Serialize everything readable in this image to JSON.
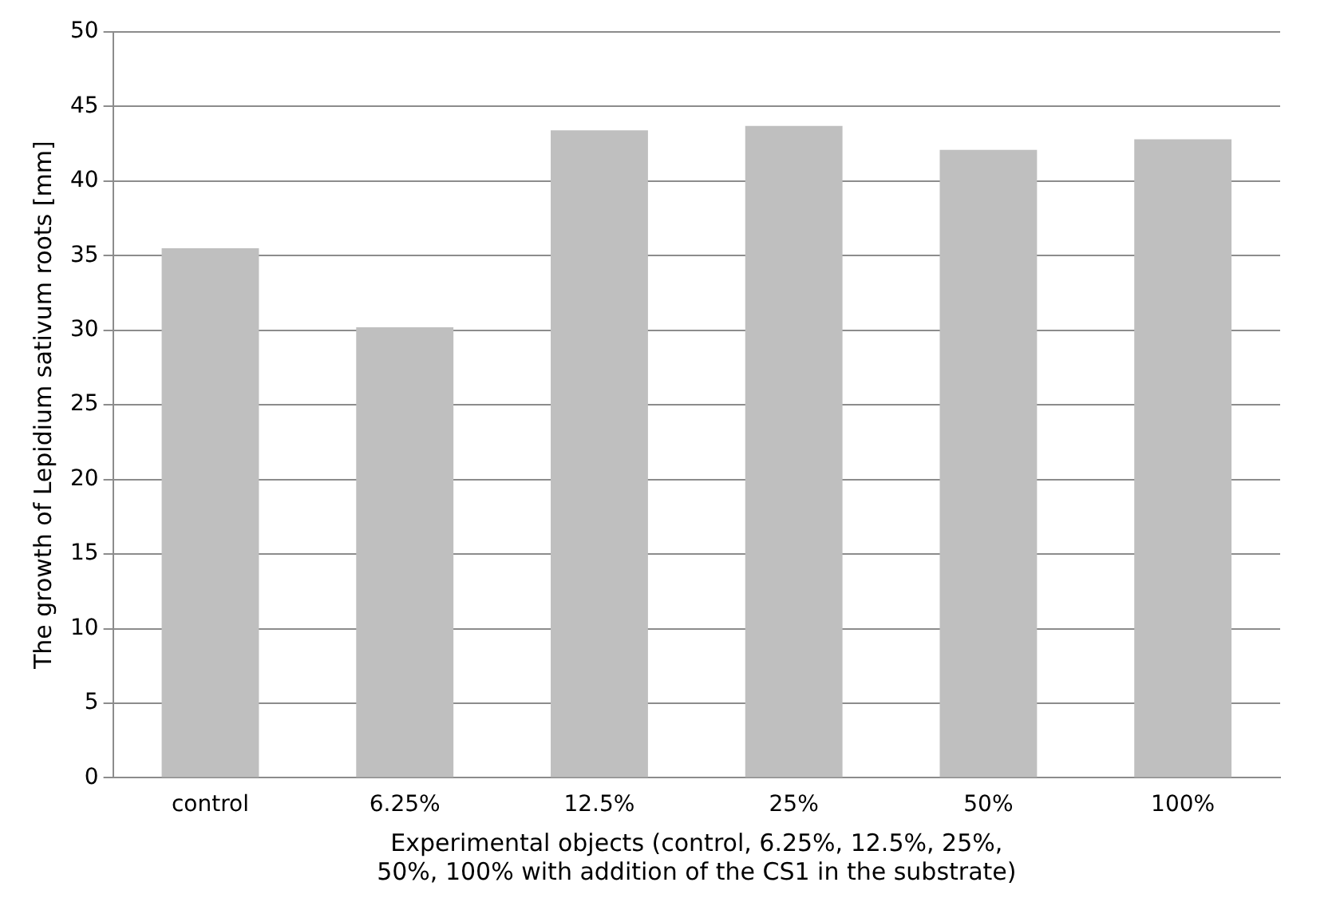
{
  "chart_data": {
    "type": "bar",
    "xlabel": "Experimental objects (control, 6.25%, 12.5%, 25%, 50%, 100% with addition of the CS1 in the substrate)",
    "ylabel": "The growth of Lepidium sativum roots [mm]",
    "categories": [
      "control",
      "6.25%",
      "12.5%",
      "25%",
      "50%",
      "100%"
    ],
    "values": [
      35.5,
      30.2,
      43.4,
      43.7,
      42.1,
      42.8
    ],
    "color": "#bfbfbf",
    "ylim": [
      0,
      50
    ],
    "yticks": [
      0,
      5,
      10,
      15,
      20,
      25,
      30,
      35,
      40,
      45,
      50
    ],
    "grid": "y",
    "legend": false
  }
}
